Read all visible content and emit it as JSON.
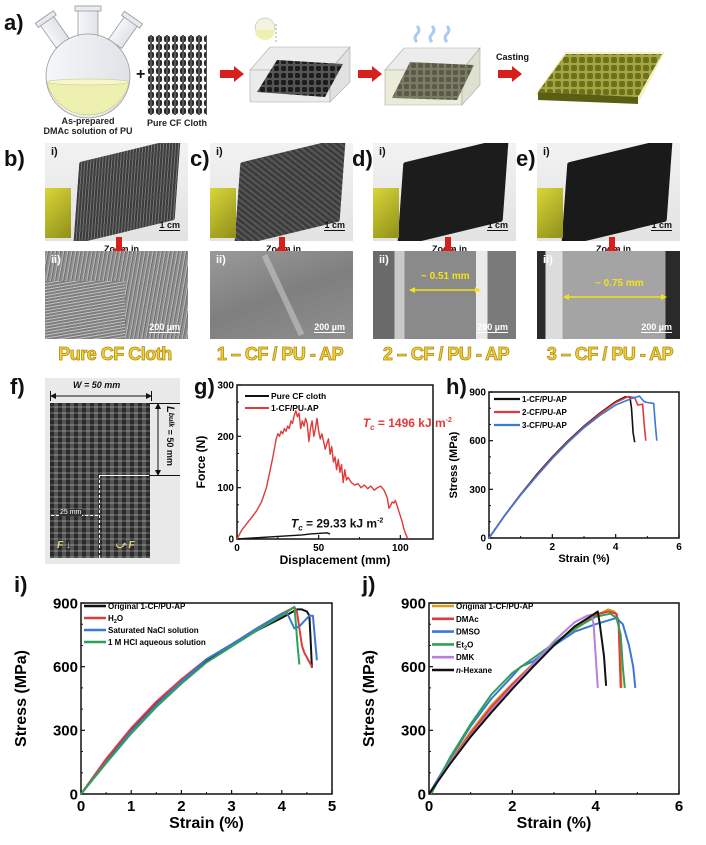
{
  "panel_labels": {
    "a": "a)",
    "b": "b)",
    "c": "c)",
    "d": "d)",
    "e": "e)",
    "f": "f)",
    "g": "g)",
    "h": "h)",
    "i": "i)",
    "j": "j)"
  },
  "panel_a": {
    "flask_caption_line1": "As-prepared",
    "flask_caption_line2": "DMAc solution of PU",
    "plus": "+",
    "cloth_caption": "Pure CF Cloth",
    "casting_label": "Casting",
    "colors": {
      "arrow": "#d6201c",
      "solution": "#eef0b0",
      "composite": "#7a7f22"
    }
  },
  "photo_panels": [
    {
      "id": "b",
      "sub_top": "i)",
      "sub_bottom": "ii)",
      "scale_top": "1 cm",
      "scale_bottom": "200 µm",
      "zoom_label": "Zoom in",
      "name": "Pure CF Cloth",
      "annotation": ""
    },
    {
      "id": "c",
      "sub_top": "i)",
      "sub_bottom": "ii)",
      "scale_top": "1 cm",
      "scale_bottom": "200 µm",
      "zoom_label": "Zoom in",
      "name": "1 – CF / PU - AP",
      "annotation": ""
    },
    {
      "id": "d",
      "sub_top": "i)",
      "sub_bottom": "ii)",
      "scale_top": "1 cm",
      "scale_bottom": "200 µm",
      "zoom_label": "Zoom in",
      "name": "2 – CF / PU - AP",
      "annotation": "~ 0.51 mm"
    },
    {
      "id": "e",
      "sub_top": "i)",
      "sub_bottom": "ii)",
      "scale_top": "1 cm",
      "scale_bottom": "200 µm",
      "zoom_label": "Zoom in",
      "name": "3 – CF / PU - AP",
      "annotation": "~ 0.75 mm"
    }
  ],
  "panel_f": {
    "width_label": "W = 50 mm",
    "length_label": "L_bulk = 50 mm",
    "length_main": "L",
    "length_sub": "bulk",
    "length_rest": " = 50 mm",
    "notch_label": "25 mm",
    "force_left": "F",
    "force_right": "F"
  },
  "chart_data": [
    {
      "id": "g",
      "type": "line",
      "title": "",
      "xlabel": "Displacement (mm)",
      "ylabel": "Force (N)",
      "xlim": [
        0,
        120
      ],
      "ylim": [
        0,
        300
      ],
      "xticks": [
        0,
        50,
        100
      ],
      "yticks": [
        0,
        100,
        200,
        300
      ],
      "legend": "top-left",
      "annotations": [
        {
          "text_main": "T",
          "text_sub": "c",
          "text_rest": " = 1496 kJ m",
          "text_sup": "-2",
          "color": "#e03a3a",
          "x": 77,
          "y": 218
        },
        {
          "text_main": "T",
          "text_sub": "c",
          "text_rest": " = 29.33 kJ m",
          "text_sup": "-2",
          "color": "#111111",
          "x": 33,
          "y": 22
        }
      ],
      "series": [
        {
          "name": "Pure CF cloth",
          "color": "#111111",
          "x": [
            0,
            5,
            10,
            15,
            20,
            25,
            30,
            35,
            40,
            45,
            50,
            55,
            57
          ],
          "y": [
            0,
            1,
            2,
            3,
            4,
            5,
            6,
            7,
            8,
            10,
            11,
            12,
            10
          ]
        },
        {
          "name": "1-CF/PU-AP",
          "color": "#e03a3a",
          "x": [
            0,
            3,
            6,
            9,
            12,
            15,
            18,
            20,
            22,
            24,
            25,
            26,
            27,
            28,
            29,
            30,
            31,
            32,
            33,
            34,
            35,
            36,
            37,
            38,
            39,
            40,
            41,
            42,
            43,
            44,
            45,
            46,
            47,
            48,
            49,
            50,
            51,
            52,
            53,
            54,
            55,
            56,
            57,
            58,
            59,
            60,
            61,
            62,
            63,
            64,
            65,
            66,
            67,
            68,
            70,
            72,
            74,
            76,
            78,
            80,
            82,
            84,
            86,
            88,
            90,
            91,
            92,
            93,
            94,
            95,
            96,
            97,
            98,
            99,
            100,
            101,
            102,
            103,
            104,
            105
          ],
          "y": [
            0,
            18,
            30,
            42,
            55,
            72,
            100,
            130,
            160,
            195,
            205,
            200,
            210,
            205,
            215,
            210,
            220,
            215,
            230,
            225,
            240,
            250,
            238,
            245,
            215,
            230,
            220,
            235,
            225,
            190,
            215,
            230,
            200,
            215,
            235,
            210,
            195,
            205,
            190,
            175,
            185,
            195,
            165,
            180,
            150,
            160,
            135,
            155,
            130,
            145,
            110,
            135,
            115,
            120,
            110,
            105,
            108,
            100,
            105,
            98,
            103,
            95,
            100,
            103,
            95,
            88,
            80,
            60,
            65,
            72,
            70,
            75,
            65,
            55,
            45,
            35,
            22,
            12,
            4,
            0
          ]
        }
      ]
    },
    {
      "id": "h",
      "type": "line",
      "title": "",
      "xlabel": "Strain (%)",
      "ylabel": "Stress (MPa)",
      "xlim": [
        0,
        6
      ],
      "ylim": [
        0,
        900
      ],
      "xticks": [
        0,
        2,
        4,
        6
      ],
      "yticks": [
        0,
        300,
        600,
        900
      ],
      "legend": "top-left",
      "series": [
        {
          "name": "1-CF/PU-AP",
          "color": "#111111",
          "x": [
            0,
            0.5,
            1,
            1.5,
            2,
            2.5,
            3,
            3.5,
            4,
            4.3,
            4.45,
            4.5,
            4.55,
            4.6
          ],
          "y": [
            0,
            140,
            270,
            390,
            500,
            600,
            690,
            770,
            840,
            870,
            870,
            800,
            650,
            590
          ]
        },
        {
          "name": "2-CF/PU-AP",
          "color": "#e03a3a",
          "x": [
            0,
            0.5,
            1,
            1.5,
            2,
            2.5,
            3,
            3.5,
            4,
            4.4,
            4.6,
            4.7,
            4.85,
            4.9,
            4.95
          ],
          "y": [
            0,
            140,
            268,
            385,
            495,
            595,
            685,
            765,
            835,
            872,
            865,
            820,
            825,
            700,
            600
          ]
        },
        {
          "name": "3-CF/PU-AP",
          "color": "#3a78d6",
          "x": [
            0,
            0.5,
            1,
            1.5,
            2,
            2.5,
            3,
            3.5,
            4,
            4.5,
            4.75,
            4.9,
            5.0,
            5.2,
            5.25,
            5.3
          ],
          "y": [
            0,
            138,
            265,
            380,
            490,
            590,
            680,
            755,
            820,
            860,
            875,
            840,
            835,
            830,
            700,
            600
          ]
        }
      ]
    },
    {
      "id": "i",
      "type": "line",
      "title": "",
      "xlabel": "Strain (%)",
      "ylabel": "Stress (MPa)",
      "xlim": [
        0,
        5
      ],
      "ylim": [
        0,
        900
      ],
      "xticks": [
        0,
        1,
        2,
        3,
        4,
        5
      ],
      "yticks": [
        0,
        300,
        600,
        900
      ],
      "legend": "top-left",
      "series": [
        {
          "name": "Original 1-CF/PU-AP",
          "label_main": "Original 1-CF/PU-AP",
          "color": "#111111",
          "x": [
            0,
            0.5,
            1,
            1.5,
            2,
            2.5,
            3,
            3.5,
            4,
            4.3,
            4.4,
            4.5,
            4.55,
            4.58,
            4.6
          ],
          "y": [
            0,
            155,
            300,
            425,
            530,
            625,
            700,
            770,
            830,
            870,
            870,
            860,
            840,
            700,
            595
          ]
        },
        {
          "name": "H2O",
          "label_main": "H",
          "label_sub": "2",
          "label_rest": "O",
          "color": "#e03a3a",
          "x": [
            0,
            0.5,
            1,
            1.5,
            2,
            2.5,
            3,
            3.5,
            4,
            4.25,
            4.3,
            4.4,
            4.45,
            4.6
          ],
          "y": [
            0,
            165,
            310,
            435,
            540,
            635,
            705,
            780,
            850,
            880,
            860,
            700,
            665,
            600
          ]
        },
        {
          "name": "Saturated NaCl solution",
          "label_main": "Saturated NaCl solution",
          "color": "#3a78d6",
          "x": [
            0,
            0.5,
            1,
            1.5,
            2,
            2.5,
            3,
            3.5,
            4,
            4.1,
            4.25,
            4.35,
            4.55,
            4.62,
            4.7
          ],
          "y": [
            0,
            150,
            295,
            420,
            530,
            635,
            705,
            780,
            850,
            855,
            780,
            790,
            840,
            840,
            630
          ]
        },
        {
          "name": "1 M HCl aqueous solution",
          "label_main": "1 M HCl aqueous solution",
          "color": "#2fa05a",
          "x": [
            0,
            0.5,
            1,
            1.5,
            2,
            2.5,
            3,
            3.5,
            4,
            4.25,
            4.28,
            4.32,
            4.35
          ],
          "y": [
            0,
            145,
            285,
            410,
            520,
            620,
            695,
            770,
            840,
            882,
            800,
            680,
            610
          ]
        }
      ]
    },
    {
      "id": "j",
      "type": "line",
      "title": "",
      "xlabel": "Strain (%)",
      "ylabel": "Stress (MPa)",
      "xlim": [
        0,
        6
      ],
      "ylim": [
        0,
        900
      ],
      "xticks": [
        0,
        2,
        4,
        6
      ],
      "yticks": [
        0,
        300,
        600,
        900
      ],
      "legend": "top-left",
      "series": [
        {
          "name": "Original 1-CF/PU-AP",
          "label_main": "Original 1-CF/PU-AP",
          "color": "#d4a017",
          "x": [
            0,
            0.5,
            1,
            1.5,
            2,
            2.5,
            3,
            3.5,
            4,
            4.3,
            4.45,
            4.55,
            4.6,
            4.62
          ],
          "y": [
            0,
            155,
            295,
            420,
            520,
            615,
            700,
            775,
            840,
            870,
            860,
            820,
            650,
            500
          ]
        },
        {
          "name": "DMAc",
          "label_main": "DMAc",
          "color": "#e03a3a",
          "x": [
            0,
            0.5,
            1,
            1.5,
            2,
            2.5,
            3,
            3.5,
            4,
            4.3,
            4.5,
            4.55,
            4.6
          ],
          "y": [
            0,
            145,
            285,
            410,
            515,
            610,
            700,
            790,
            845,
            860,
            850,
            800,
            500
          ]
        },
        {
          "name": "DMSO",
          "label_main": "DMSO",
          "color": "#3a78d6",
          "x": [
            0,
            0.5,
            1,
            1.5,
            2,
            2.2,
            2.5,
            3,
            3.5,
            4,
            4.5,
            4.65,
            4.8,
            4.9,
            4.95
          ],
          "y": [
            0,
            165,
            320,
            450,
            555,
            600,
            625,
            700,
            765,
            800,
            830,
            800,
            700,
            600,
            500
          ]
        },
        {
          "name": "Et2O",
          "label_main": "Et",
          "label_sub": "2",
          "label_rest": "O",
          "color": "#2fa05a",
          "x": [
            0.05,
            0.5,
            1,
            1.5,
            2,
            2.25,
            2.5,
            3,
            3.5,
            4,
            4.35,
            4.5,
            4.6,
            4.65,
            4.7
          ],
          "y": [
            0,
            170,
            330,
            470,
            570,
            605,
            640,
            710,
            780,
            835,
            850,
            830,
            750,
            600,
            500
          ]
        },
        {
          "name": "DMK",
          "label_main": "DMK",
          "color": "#b57fe0",
          "x": [
            0,
            0.5,
            1,
            1.5,
            2,
            2.5,
            3,
            3.5,
            3.8,
            3.9,
            3.95,
            4.0,
            4.05
          ],
          "y": [
            0,
            145,
            275,
            395,
            505,
            610,
            720,
            810,
            840,
            845,
            800,
            650,
            500
          ]
        },
        {
          "name": "n-Hexane",
          "label_main": "n",
          "label_rest": "-Hexane",
          "italic_main": true,
          "color": "#111111",
          "x": [
            0,
            0.5,
            1,
            1.5,
            2,
            2.5,
            3,
            3.5,
            3.9,
            4.05,
            4.1,
            4.2,
            4.25
          ],
          "y": [
            0,
            140,
            270,
            385,
            495,
            600,
            700,
            790,
            840,
            860,
            800,
            650,
            510
          ]
        }
      ]
    }
  ]
}
